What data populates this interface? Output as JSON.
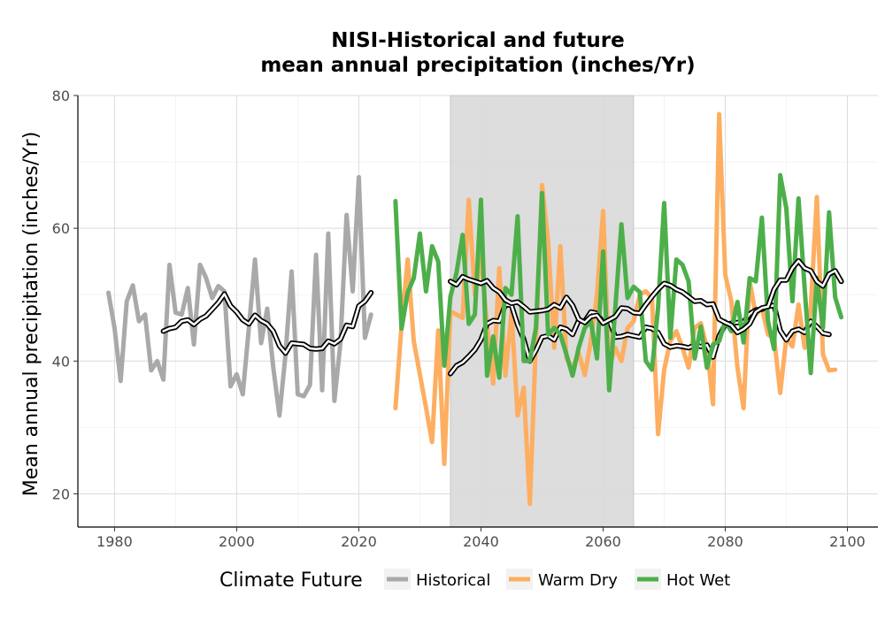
{
  "chart_data": {
    "type": "line",
    "title": "NISI-Historical and future",
    "subtitle": "mean annual precipitation (inches/Yr)",
    "xlabel": "",
    "ylabel": "Mean annual precipitation (inches/Yr)",
    "xlim": [
      1974,
      2105
    ],
    "ylim": [
      15,
      80
    ],
    "x_ticks": [
      1980,
      2000,
      2020,
      2040,
      2060,
      2080,
      2100
    ],
    "y_ticks": [
      20,
      40,
      60,
      80
    ],
    "grid": true,
    "shaded_period": [
      2035,
      2065
    ],
    "legend": {
      "title": "Climate Future",
      "placement": "bottom",
      "entries": [
        "Historical",
        "Warm Dry",
        "Hot Wet"
      ]
    },
    "series": [
      {
        "name": "Historical",
        "color": "#a9a9a9",
        "x_start": 1979,
        "values": [
          50.3,
          45,
          37,
          49,
          51.4,
          46,
          47,
          38.6,
          40,
          37.2,
          54.5,
          47.3,
          47,
          51,
          42.5,
          54.5,
          52.5,
          49.5,
          51.3,
          50.5,
          36.2,
          38,
          35,
          45,
          55.3,
          42.7,
          47.9,
          39,
          31.8,
          41,
          53.5,
          35,
          34.7,
          36.4,
          56,
          35.6,
          59.2,
          34,
          42.8,
          62,
          50.5,
          67.7,
          43.5,
          47
        ]
      },
      {
        "name": "Historical trend",
        "color": "#1a1a1a",
        "x_start": 1988,
        "values": [
          44.5,
          44.9,
          45.1,
          46,
          46.2,
          45.5,
          46.3,
          46.8,
          47.8,
          48.8,
          50.1,
          48.3,
          47.4,
          46.2,
          45.6,
          46.9,
          46.1,
          45.6,
          44.5,
          42.3,
          41.2,
          42.7,
          42.6,
          42.5,
          41.9,
          41.8,
          41.9,
          43,
          42.6,
          43.3,
          45.4,
          45.2,
          48.3,
          49,
          50.3
        ]
      },
      {
        "name": "Warm Dry",
        "color": "#fdae61",
        "x_start": 2026,
        "values": [
          32.9,
          45.4,
          55.3,
          43,
          38,
          33,
          27.8,
          44.6,
          24.5,
          47.5,
          47,
          46.5,
          64.3,
          50,
          55.6,
          45.5,
          36.6,
          54,
          37.8,
          47.4,
          31.8,
          36,
          18.5,
          43,
          66.5,
          58,
          42,
          57.3,
          40.4,
          39,
          41.2,
          37.9,
          43,
          50,
          62.6,
          39,
          42,
          40,
          45,
          46,
          50,
          50.5,
          49.5,
          29,
          38.7,
          43,
          44.5,
          42,
          39,
          45,
          45.7,
          42,
          33.5,
          77.2,
          53,
          49,
          39,
          32.9,
          52,
          47,
          48,
          44,
          43.5,
          35.2,
          43.5,
          42.2,
          48.5,
          42,
          48,
          64.7,
          41,
          38.6,
          38.7
        ]
      },
      {
        "name": "Warm Dry trend",
        "color": "#1a1a1a",
        "x_start": 2035,
        "values": [
          38.1,
          39.3,
          39.8,
          40.7,
          41.7,
          43.2,
          45.6,
          46.1,
          46,
          48.5,
          48.4,
          45.5,
          43.3,
          40,
          41.6,
          43.6,
          43.8,
          43.2,
          45.1,
          44.8,
          44,
          46.1,
          46,
          47.4,
          47.2,
          45.8,
          46.2,
          43.6,
          43.7,
          44,
          43.8,
          43.6,
          45.1,
          44.9,
          44.3,
          42.6,
          42.1,
          42.3,
          42.2,
          42,
          42.4,
          42.2,
          42.4,
          40.6,
          43.8,
          45.5,
          45.7,
          45.8,
          45.9,
          47.1,
          47.7,
          47.8,
          48.2,
          48.4,
          44.6,
          43.2,
          44.5,
          44.8,
          44.3,
          46,
          45.2,
          44.2,
          44
        ]
      },
      {
        "name": "Hot Wet",
        "color": "#4daf4a",
        "x_start": 2026,
        "values": [
          64.1,
          44.9,
          50.3,
          52.5,
          59.2,
          50.5,
          57.3,
          55,
          39.3,
          49.7,
          53.3,
          59,
          45.6,
          47,
          64.3,
          37.8,
          43.7,
          37.5,
          51,
          50,
          61.8,
          40,
          40,
          45,
          65.3,
          44,
          45,
          44,
          41,
          37.8,
          42,
          45,
          46,
          40.4,
          56.5,
          35.6,
          48,
          60.6,
          49.5,
          51.2,
          50.4,
          40,
          38.7,
          48,
          63.8,
          43.5,
          55.3,
          54.5,
          52,
          40.4,
          45.2,
          39,
          42.5,
          43,
          46,
          44.5,
          48.9,
          42.8,
          52.5,
          52,
          61.6,
          46,
          41.8,
          68,
          63,
          49,
          64.5,
          51,
          38.2,
          52.5,
          45,
          62.4,
          49.6,
          46.6
        ]
      },
      {
        "name": "Hot Wet trend",
        "color": "#1a1a1a",
        "x_start": 2035,
        "values": [
          52,
          51.5,
          52.7,
          52.3,
          52,
          51.7,
          52.1,
          51,
          50.4,
          49.2,
          48.7,
          48.9,
          48.2,
          47.4,
          47.5,
          47.6,
          47.8,
          48.5,
          48,
          49.6,
          48.4,
          46.3,
          45.8,
          46.7,
          46.9,
          45.7,
          46.2,
          46.7,
          48,
          47.9,
          47.3,
          47.2,
          48.5,
          49.7,
          50.8,
          51.7,
          51.4,
          50.8,
          50.4,
          49.7,
          49,
          49.1,
          48.5,
          48.6,
          46.3,
          45.8,
          45.4,
          44.3,
          44.8,
          45.6,
          47.4,
          48,
          48.2,
          50.8,
          52.2,
          52.2,
          54,
          55.1,
          54,
          53.6,
          52,
          51.3,
          53.1,
          53.6,
          52
        ]
      }
    ]
  }
}
